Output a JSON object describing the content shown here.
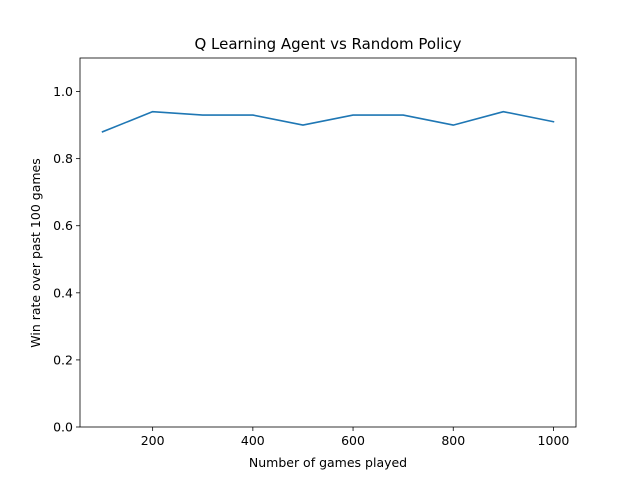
{
  "chart_data": {
    "type": "line",
    "title": "Q Learning Agent vs Random Policy",
    "xlabel": "Number of games played",
    "ylabel": "Win rate over past 100 games",
    "xlim": [
      55,
      1045
    ],
    "ylim": [
      0.0,
      1.1
    ],
    "x_ticks": [
      200,
      400,
      600,
      800,
      1000
    ],
    "x_tick_labels": [
      "200",
      "400",
      "600",
      "800",
      "1000"
    ],
    "y_ticks": [
      0.0,
      0.2,
      0.4,
      0.6,
      0.8,
      1.0
    ],
    "y_tick_labels": [
      "0.0",
      "0.2",
      "0.4",
      "0.6",
      "0.8",
      "1.0"
    ],
    "grid": false,
    "series": [
      {
        "color": "#1f77b4",
        "x": [
          100,
          200,
          300,
          400,
          500,
          600,
          700,
          800,
          900,
          1000
        ],
        "y": [
          0.88,
          0.94,
          0.93,
          0.93,
          0.9,
          0.93,
          0.93,
          0.9,
          0.94,
          0.91
        ]
      }
    ]
  }
}
